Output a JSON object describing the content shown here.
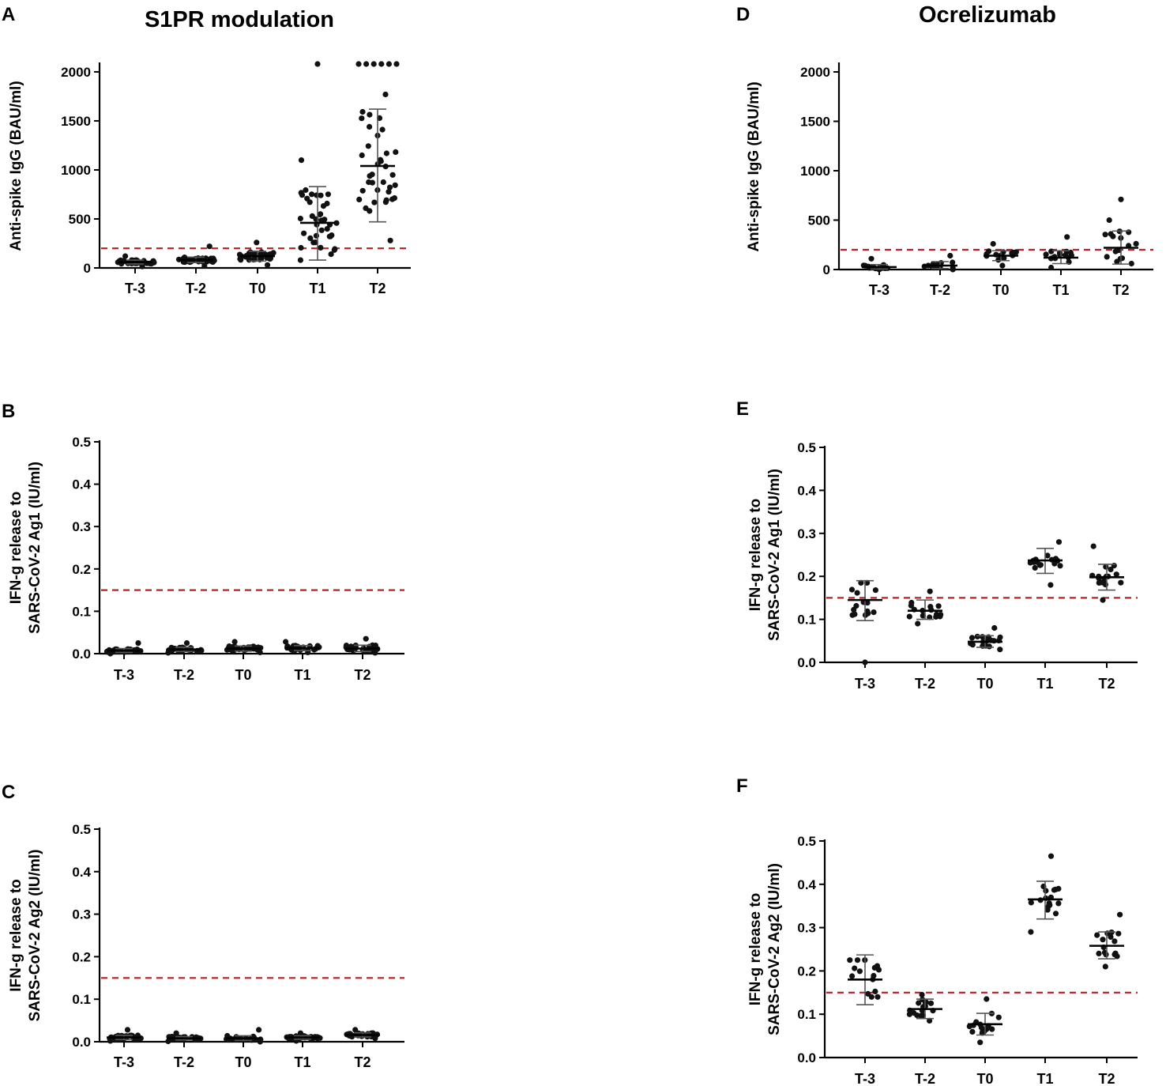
{
  "colors": {
    "threshold": "#b52025",
    "points": "#111111",
    "axis": "#000000",
    "errorbar": "#555555"
  },
  "figure": {
    "column_titles": [
      "S1PR modulation",
      "Ocrelizumab"
    ]
  },
  "chart_data": [
    {
      "panel": "A",
      "type": "scatter",
      "title": "S1PR modulation",
      "xlabel": "",
      "ylabel": "Anti-spike IgG (BAU/ml)",
      "ylim": [
        0,
        2080
      ],
      "yticks": [
        0,
        500,
        1000,
        1500,
        2000
      ],
      "ytick_labels": [
        "0",
        "500",
        "1000",
        "1500",
        "2000"
      ],
      "categories": [
        "T-3",
        "T-2",
        "T0",
        "T1",
        "T2"
      ],
      "threshold": 200,
      "groups": [
        {
          "label": "T-3",
          "mean": 60,
          "sd_low": 40,
          "sd_high": 80,
          "n": 36,
          "min": 15,
          "max": 120,
          "extra": []
        },
        {
          "label": "T-2",
          "mean": 80,
          "sd_low": 55,
          "sd_high": 110,
          "n": 36,
          "min": 20,
          "max": 220,
          "extra": []
        },
        {
          "label": "T0",
          "mean": 120,
          "sd_low": 70,
          "sd_high": 170,
          "n": 36,
          "min": 30,
          "max": 260,
          "extra": []
        },
        {
          "label": "T1",
          "mean": 460,
          "sd_low": 80,
          "sd_high": 830,
          "n": 38,
          "min": 80,
          "max": 1100,
          "extra": [
            2080
          ]
        },
        {
          "label": "T2",
          "mean": 1040,
          "sd_low": 470,
          "sd_high": 1620,
          "n": 36,
          "min": 280,
          "max": 1770,
          "extra": [
            2080,
            2080,
            2080,
            2080,
            2080,
            2080
          ]
        }
      ]
    },
    {
      "panel": "B",
      "type": "scatter",
      "title": "",
      "xlabel": "",
      "ylabel": "IFN-g release to SARS-CoV-2 Ag1 (IU/ml)",
      "ylim": [
        0,
        0.5
      ],
      "yticks": [
        0,
        0.1,
        0.2,
        0.3,
        0.4,
        0.5
      ],
      "ytick_labels": [
        "0.0",
        "0.1",
        "0.2",
        "0.3",
        "0.4",
        "0.5"
      ],
      "categories": [
        "T-3",
        "T-2",
        "T0",
        "T1",
        "T2"
      ],
      "threshold": 0.15,
      "groups": [
        {
          "label": "T-3",
          "mean": 0.007,
          "sd_low": 0.003,
          "sd_high": 0.012,
          "n": 30,
          "min": 0.0,
          "max": 0.025,
          "extra": []
        },
        {
          "label": "T-2",
          "mean": 0.01,
          "sd_low": 0.005,
          "sd_high": 0.015,
          "n": 30,
          "min": 0.002,
          "max": 0.025,
          "extra": []
        },
        {
          "label": "T0",
          "mean": 0.012,
          "sd_low": 0.006,
          "sd_high": 0.018,
          "n": 30,
          "min": 0.003,
          "max": 0.028,
          "extra": []
        },
        {
          "label": "T1",
          "mean": 0.013,
          "sd_low": 0.007,
          "sd_high": 0.019,
          "n": 34,
          "min": 0.003,
          "max": 0.028,
          "extra": []
        },
        {
          "label": "T2",
          "mean": 0.012,
          "sd_low": 0.005,
          "sd_high": 0.02,
          "n": 30,
          "min": 0.002,
          "max": 0.035,
          "extra": []
        }
      ]
    },
    {
      "panel": "C",
      "type": "scatter",
      "title": "",
      "xlabel": "",
      "ylabel": "IFN-g release to SARS-CoV-2 Ag2 (IU/ml)",
      "ylim": [
        0,
        0.5
      ],
      "yticks": [
        0,
        0.1,
        0.2,
        0.3,
        0.4,
        0.5
      ],
      "ytick_labels": [
        "0.0",
        "0.1",
        "0.2",
        "0.3",
        "0.4",
        "0.5"
      ],
      "categories": [
        "T-3",
        "T-2",
        "T0",
        "T1",
        "T2"
      ],
      "threshold": 0.15,
      "groups": [
        {
          "label": "T-3",
          "mean": 0.01,
          "sd_low": 0.005,
          "sd_high": 0.015,
          "n": 30,
          "min": 0.002,
          "max": 0.028,
          "extra": []
        },
        {
          "label": "T-2",
          "mean": 0.008,
          "sd_low": 0.004,
          "sd_high": 0.012,
          "n": 30,
          "min": 0.001,
          "max": 0.02,
          "extra": []
        },
        {
          "label": "T0",
          "mean": 0.008,
          "sd_low": 0.003,
          "sd_high": 0.014,
          "n": 30,
          "min": 0.0,
          "max": 0.028,
          "extra": []
        },
        {
          "label": "T1",
          "mean": 0.01,
          "sd_low": 0.006,
          "sd_high": 0.014,
          "n": 32,
          "min": 0.002,
          "max": 0.02,
          "extra": []
        },
        {
          "label": "T2",
          "mean": 0.016,
          "sd_low": 0.011,
          "sd_high": 0.021,
          "n": 30,
          "min": 0.008,
          "max": 0.028,
          "extra": []
        }
      ]
    },
    {
      "panel": "D",
      "type": "scatter",
      "title": "Ocrelizumab",
      "xlabel": "",
      "ylabel": "Anti-spike IgG (BAU/ml)",
      "ylim": [
        0,
        2080
      ],
      "yticks": [
        0,
        500,
        1000,
        1500,
        2000
      ],
      "ytick_labels": [
        "0",
        "500",
        "1000",
        "1500",
        "2000"
      ],
      "categories": [
        "T-3",
        "T-2",
        "T0",
        "T1",
        "T2"
      ],
      "threshold": 200,
      "groups": [
        {
          "label": "T-3",
          "mean": 25,
          "sd_low": 5,
          "sd_high": 50,
          "n": 15,
          "min": 0,
          "max": 110,
          "extra": []
        },
        {
          "label": "T-2",
          "mean": 40,
          "sd_low": 10,
          "sd_high": 80,
          "n": 16,
          "min": 0,
          "max": 140,
          "extra": []
        },
        {
          "label": "T0",
          "mean": 140,
          "sd_low": 90,
          "sd_high": 190,
          "n": 16,
          "min": 40,
          "max": 260,
          "extra": []
        },
        {
          "label": "T1",
          "mean": 120,
          "sd_low": 60,
          "sd_high": 190,
          "n": 16,
          "min": 20,
          "max": 330,
          "extra": []
        },
        {
          "label": "T2",
          "mean": 220,
          "sd_low": 55,
          "sd_high": 390,
          "n": 16,
          "min": 60,
          "max": 500,
          "extra": [
            710
          ]
        }
      ]
    },
    {
      "panel": "E",
      "type": "scatter",
      "title": "",
      "xlabel": "",
      "ylabel": "IFN-g release to SARS-CoV-2 Ag1 (IU/ml)",
      "ylim": [
        0,
        0.5
      ],
      "yticks": [
        0,
        0.1,
        0.2,
        0.3,
        0.4,
        0.5
      ],
      "ytick_labels": [
        "0.0",
        "0.1",
        "0.2",
        "0.3",
        "0.4",
        "0.5"
      ],
      "categories": [
        "T-3",
        "T-2",
        "T0",
        "T1",
        "T2"
      ],
      "threshold": 0.15,
      "groups": [
        {
          "label": "T-3",
          "mean": 0.145,
          "sd_low": 0.097,
          "sd_high": 0.19,
          "n": 15,
          "min": 0.11,
          "max": 0.185,
          "extra": [
            0.0
          ]
        },
        {
          "label": "T-2",
          "mean": 0.12,
          "sd_low": 0.1,
          "sd_high": 0.145,
          "n": 17,
          "min": 0.09,
          "max": 0.165,
          "extra": []
        },
        {
          "label": "T0",
          "mean": 0.048,
          "sd_low": 0.035,
          "sd_high": 0.062,
          "n": 17,
          "min": 0.03,
          "max": 0.08,
          "extra": []
        },
        {
          "label": "T1",
          "mean": 0.237,
          "sd_low": 0.207,
          "sd_high": 0.265,
          "n": 17,
          "min": 0.18,
          "max": 0.28,
          "extra": []
        },
        {
          "label": "T2",
          "mean": 0.198,
          "sd_low": 0.168,
          "sd_high": 0.228,
          "n": 17,
          "min": 0.145,
          "max": 0.27,
          "extra": []
        }
      ]
    },
    {
      "panel": "F",
      "type": "scatter",
      "title": "",
      "xlabel": "",
      "ylabel": "IFN-g release to SARS-CoV-2 Ag2 (IU/ml)",
      "ylim": [
        0,
        0.5
      ],
      "yticks": [
        0,
        0.1,
        0.2,
        0.3,
        0.4,
        0.5
      ],
      "ytick_labels": [
        "0.0",
        "0.1",
        "0.2",
        "0.3",
        "0.4",
        "0.5"
      ],
      "categories": [
        "T-3",
        "T-2",
        "T0",
        "T1",
        "T2"
      ],
      "threshold": 0.15,
      "groups": [
        {
          "label": "T-3",
          "mean": 0.18,
          "sd_low": 0.122,
          "sd_high": 0.237,
          "n": 15,
          "min": 0.14,
          "max": 0.225,
          "extra": []
        },
        {
          "label": "T-2",
          "mean": 0.112,
          "sd_low": 0.09,
          "sd_high": 0.135,
          "n": 17,
          "min": 0.085,
          "max": 0.145,
          "extra": []
        },
        {
          "label": "T0",
          "mean": 0.077,
          "sd_low": 0.052,
          "sd_high": 0.102,
          "n": 17,
          "min": 0.035,
          "max": 0.135,
          "extra": []
        },
        {
          "label": "T1",
          "mean": 0.365,
          "sd_low": 0.32,
          "sd_high": 0.407,
          "n": 17,
          "min": 0.29,
          "max": 0.465,
          "extra": []
        },
        {
          "label": "T2",
          "mean": 0.258,
          "sd_low": 0.228,
          "sd_high": 0.29,
          "n": 16,
          "min": 0.21,
          "max": 0.33,
          "extra": []
        }
      ]
    }
  ]
}
